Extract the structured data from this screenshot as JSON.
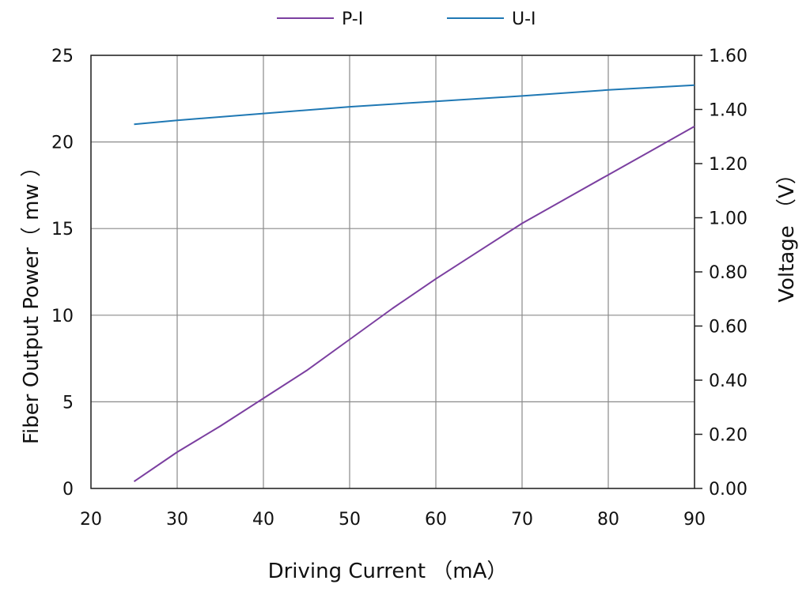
{
  "chart_data": {
    "type": "line",
    "xlabel": "Driving Current （mA）",
    "ylabel_left": "Fiber Output Power（ mw ）",
    "ylabel_right": "Voltage （V）",
    "xlim": [
      20,
      90
    ],
    "ylim_left": [
      0,
      25
    ],
    "ylim_right": [
      0.0,
      1.6
    ],
    "x_ticks": [
      "20",
      "30",
      "40",
      "50",
      "60",
      "70",
      "80",
      "90"
    ],
    "y_ticks_left": [
      "0",
      "5",
      "10",
      "15",
      "20",
      "25"
    ],
    "y_ticks_right": [
      "0.00",
      "0.20",
      "0.40",
      "0.60",
      "0.80",
      "1.00",
      "1.20",
      "1.40",
      "1.60"
    ],
    "grid": true,
    "legend_position": "top",
    "series": [
      {
        "name": "P-I",
        "axis": "left",
        "color": "#7b3fa0",
        "x": [
          25,
          30,
          35,
          40,
          45,
          50,
          55,
          60,
          65,
          70,
          75,
          80,
          85,
          90
        ],
        "y": [
          0.4,
          2.1,
          3.6,
          5.2,
          6.8,
          8.6,
          10.4,
          12.1,
          13.7,
          15.3,
          16.7,
          18.1,
          19.5,
          20.9
        ]
      },
      {
        "name": "U-I",
        "axis": "right",
        "color": "#1f78b4",
        "x": [
          25,
          30,
          40,
          50,
          60,
          70,
          80,
          90
        ],
        "y": [
          1.345,
          1.36,
          1.385,
          1.41,
          1.43,
          1.45,
          1.472,
          1.49
        ]
      }
    ]
  }
}
